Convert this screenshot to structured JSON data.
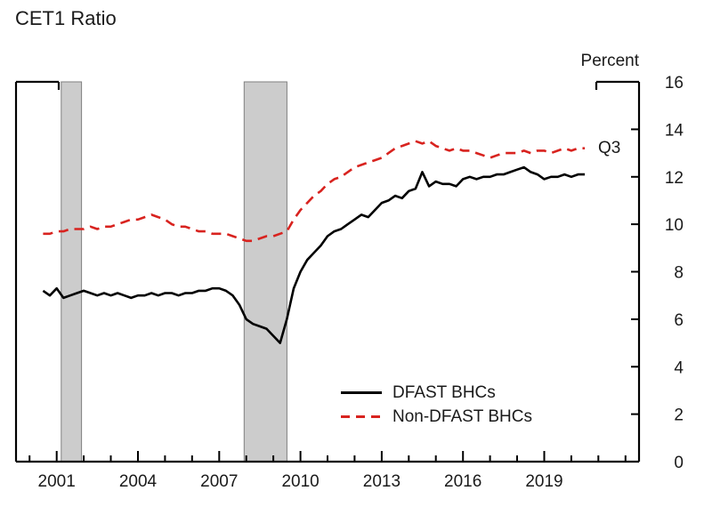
{
  "title": "CET1 Ratio",
  "chart_data": {
    "type": "line",
    "title": "CET1 Ratio",
    "xlabel": "",
    "ylabel": "Percent",
    "end_label": "Q3",
    "ylim": [
      0,
      16
    ],
    "xlim": [
      1999.5,
      2022.5
    ],
    "y_ticks": [
      0,
      2,
      4,
      6,
      8,
      10,
      12,
      14,
      16
    ],
    "x_tick_values": [
      2001,
      2004,
      2007,
      2010,
      2013,
      2016,
      2019
    ],
    "x_tick_labels": [
      "2001",
      "2004",
      "2007",
      "2010",
      "2013",
      "2016",
      "2019"
    ],
    "x_minor_tick_step": 1,
    "x_start": 2000.5,
    "x_step": 0.25,
    "x_unit": "year (quarterly)",
    "grid": false,
    "legend_position": "inside-bottom-center",
    "axis_color": "#000000",
    "text_color": "#1a1a1a",
    "recession_color": "#cccccc",
    "recession_edge_color": "#808080",
    "recessions": [
      [
        2001.17,
        2001.92
      ],
      [
        2007.92,
        2009.5
      ]
    ],
    "series": [
      {
        "name": "DFAST BHCs",
        "color": "#000000",
        "style": "solid",
        "values": [
          7.2,
          7.0,
          7.3,
          6.9,
          7.0,
          7.1,
          7.2,
          7.1,
          7.0,
          7.1,
          7.0,
          7.1,
          7.0,
          6.9,
          7.0,
          7.0,
          7.1,
          7.0,
          7.1,
          7.1,
          7.0,
          7.1,
          7.1,
          7.2,
          7.2,
          7.3,
          7.3,
          7.2,
          7.0,
          6.6,
          6.0,
          5.8,
          5.7,
          5.6,
          5.3,
          5.0,
          6.0,
          7.3,
          8.0,
          8.5,
          8.8,
          9.1,
          9.5,
          9.7,
          9.8,
          10.0,
          10.2,
          10.4,
          10.3,
          10.6,
          10.9,
          11.0,
          11.2,
          11.1,
          11.4,
          11.5,
          12.2,
          11.6,
          11.8,
          11.7,
          11.7,
          11.6,
          11.9,
          12.0,
          11.9,
          12.0,
          12.0,
          12.1,
          12.1,
          12.2,
          12.3,
          12.4,
          12.2,
          12.1,
          11.9,
          12.0,
          12.0,
          12.1,
          12.0,
          12.1,
          12.1
        ]
      },
      {
        "name": "Non-DFAST BHCs",
        "color": "#d8231f",
        "style": "dashed",
        "values": [
          9.6,
          9.6,
          9.7,
          9.7,
          9.8,
          9.8,
          9.8,
          9.9,
          9.8,
          9.9,
          9.9,
          10.0,
          10.1,
          10.2,
          10.2,
          10.3,
          10.4,
          10.3,
          10.2,
          10.0,
          9.9,
          9.9,
          9.8,
          9.7,
          9.7,
          9.6,
          9.6,
          9.6,
          9.5,
          9.4,
          9.3,
          9.3,
          9.4,
          9.5,
          9.5,
          9.6,
          9.7,
          10.2,
          10.6,
          10.9,
          11.2,
          11.4,
          11.7,
          11.9,
          12.0,
          12.2,
          12.4,
          12.5,
          12.6,
          12.7,
          12.8,
          13.0,
          13.2,
          13.3,
          13.4,
          13.5,
          13.4,
          13.5,
          13.3,
          13.2,
          13.1,
          13.2,
          13.1,
          13.1,
          13.0,
          12.9,
          12.8,
          12.9,
          13.0,
          13.0,
          13.0,
          13.1,
          13.0,
          13.1,
          13.1,
          13.0,
          13.1,
          13.2,
          13.1,
          13.2,
          13.2
        ]
      }
    ]
  }
}
